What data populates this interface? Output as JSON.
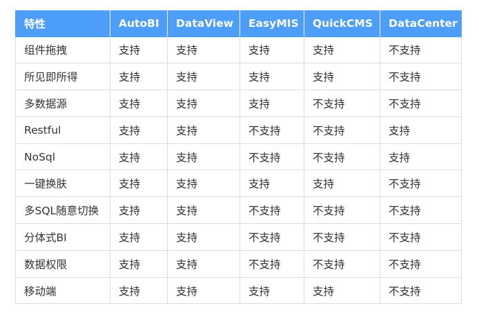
{
  "table": {
    "headers": [
      "特性",
      "AutoBI",
      "DataView",
      "EasyMIS",
      "QuickCMS",
      "DataCenter"
    ],
    "rows": [
      [
        "组件拖拽",
        "支持",
        "支持",
        "支持",
        "支持",
        "不支持"
      ],
      [
        "所见即所得",
        "支持",
        "支持",
        "支持",
        "支持",
        "不支持"
      ],
      [
        "多数据源",
        "支持",
        "支持",
        "支持",
        "不支持",
        "不支持"
      ],
      [
        "Restful",
        "支持",
        "支持",
        "不支持",
        "不支持",
        "支持"
      ],
      [
        "NoSql",
        "支持",
        "支持",
        "不支持",
        "不支持",
        "支持"
      ],
      [
        "一键换肤",
        "支持",
        "支持",
        "支持",
        "支持",
        "不支持"
      ],
      [
        "多SQL随意切换",
        "支持",
        "支持",
        "不支持",
        "不支持",
        "不支持"
      ],
      [
        "分体式BI",
        "支持",
        "支持",
        "不支持",
        "不支持",
        "不支持"
      ],
      [
        "数据权限",
        "支持",
        "支持",
        "不支持",
        "不支持",
        "不支持"
      ],
      [
        "移动端",
        "支持",
        "支持",
        "支持",
        "支持",
        "不支持"
      ]
    ]
  },
  "colors": {
    "header_bg": "#4c9ef8",
    "header_text": "#ffffff",
    "cell_text": "#333333",
    "border": "#dcdcdc"
  }
}
